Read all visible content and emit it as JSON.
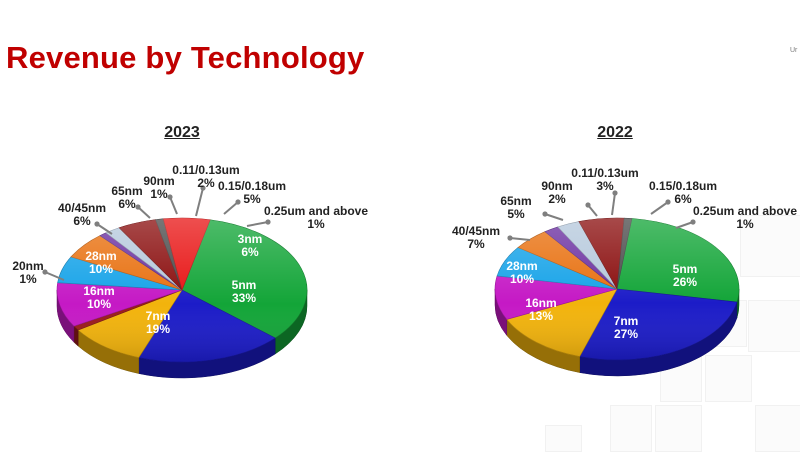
{
  "page": {
    "title": "Revenue by Technology",
    "corner_text": "Ur"
  },
  "chart_data": [
    {
      "type": "pie",
      "title": "2023",
      "slices": [
        {
          "label": "5nm",
          "value": 33,
          "color": "#13a538"
        },
        {
          "label": "7nm",
          "value": 19,
          "color": "#1c1cc8"
        },
        {
          "label": "16nm",
          "value": 10,
          "color": "#f2b30c"
        },
        {
          "label": "20nm",
          "value": 1,
          "color": "#9b1b1b"
        },
        {
          "label": "28nm",
          "value": 10,
          "color": "#c519c5"
        },
        {
          "label": "40/45nm",
          "value": 6,
          "color": "#16a3e8"
        },
        {
          "label": "65nm",
          "value": 6,
          "color": "#e8700f"
        },
        {
          "label": "90nm",
          "value": 1,
          "color": "#6b2fa0"
        },
        {
          "label": "0.11/0.13um",
          "value": 2,
          "color": "#b5c8dc"
        },
        {
          "label": "0.15/0.18um",
          "value": 5,
          "color": "#8a0d0d"
        },
        {
          "label": "0.25um and above",
          "value": 1,
          "color": "#4a4a4a"
        },
        {
          "label": "3nm",
          "value": 6,
          "color": "#e81414"
        }
      ]
    },
    {
      "type": "pie",
      "title": "2022",
      "slices": [
        {
          "label": "5nm",
          "value": 26,
          "color": "#13a538"
        },
        {
          "label": "7nm",
          "value": 27,
          "color": "#1c1cc8"
        },
        {
          "label": "16nm",
          "value": 13,
          "color": "#f2b30c"
        },
        {
          "label": "28nm",
          "value": 10,
          "color": "#c519c5"
        },
        {
          "label": "40/45nm",
          "value": 7,
          "color": "#16a3e8"
        },
        {
          "label": "65nm",
          "value": 5,
          "color": "#e8700f"
        },
        {
          "label": "90nm",
          "value": 2,
          "color": "#6b2fa0"
        },
        {
          "label": "0.11/0.13um",
          "value": 3,
          "color": "#b5c8dc"
        },
        {
          "label": "0.15/0.18um",
          "value": 6,
          "color": "#8a0d0d"
        },
        {
          "label": "0.25um and above",
          "value": 1,
          "color": "#4a4a4a"
        }
      ]
    }
  ]
}
